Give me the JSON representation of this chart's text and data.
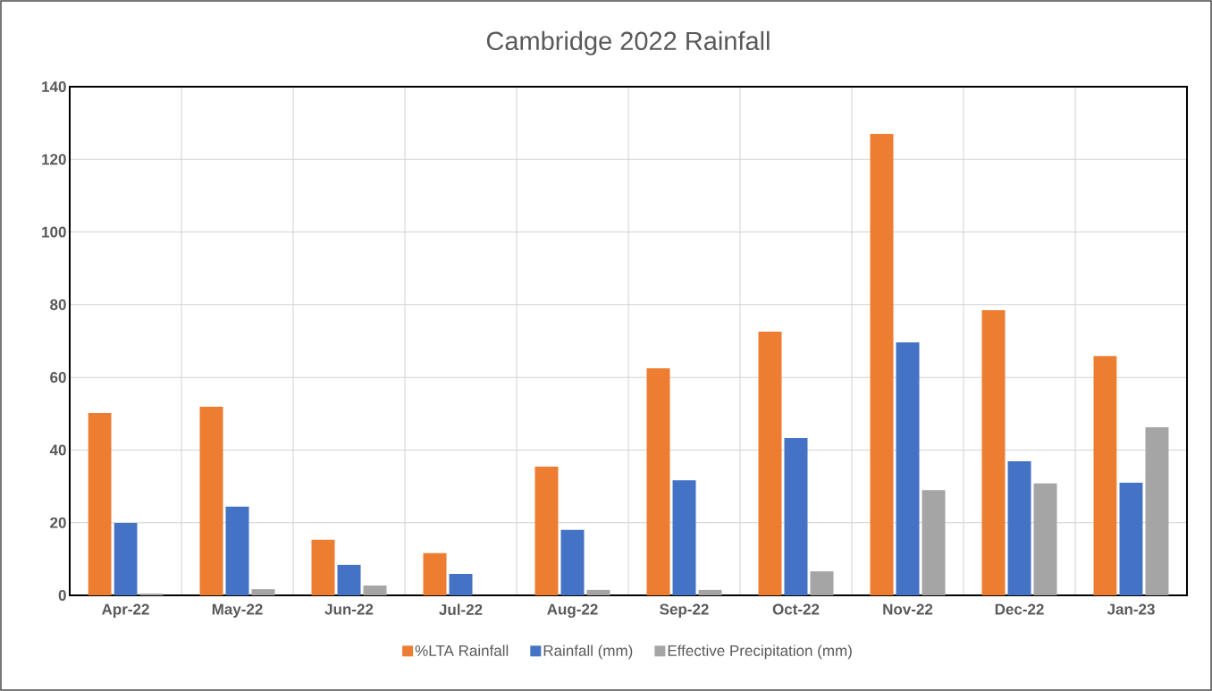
{
  "chart_data": {
    "type": "bar",
    "title": "Cambridge 2022 Rainfall",
    "categories": [
      "Apr-22",
      "May-22",
      "Jun-22",
      "Jul-22",
      "Aug-22",
      "Sep-22",
      "Oct-22",
      "Nov-22",
      "Dec-22",
      "Jan-23"
    ],
    "series": [
      {
        "name": "%LTA Rainfall",
        "color": "#ed7d31",
        "values": [
          50.2,
          51.9,
          15.3,
          11.6,
          35.4,
          62.5,
          72.6,
          127,
          78.5,
          65.9
        ]
      },
      {
        "name": "Rainfall (mm)",
        "color": "#4472c4",
        "values": [
          19.9,
          24.4,
          8.4,
          5.9,
          18,
          31.7,
          43.3,
          69.6,
          36.9,
          31
        ]
      },
      {
        "name": "Effective Precipitation (mm)",
        "color": "#a5a5a5",
        "values": [
          0.5,
          1.7,
          2.7,
          0,
          1.5,
          1.5,
          6.6,
          29,
          30.8,
          46.3
        ]
      }
    ],
    "ylim": [
      0,
      140
    ],
    "yticks": [
      0,
      20,
      40,
      60,
      80,
      100,
      120,
      140
    ],
    "grid": true,
    "legend": "bottom"
  }
}
